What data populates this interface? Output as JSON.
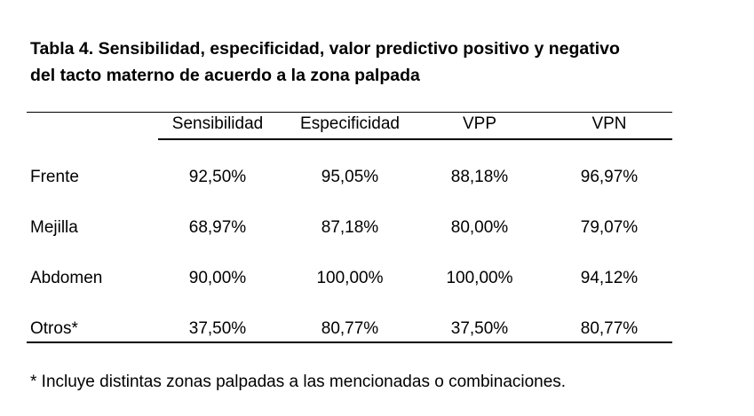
{
  "title": {
    "line1": "Tabla 4. Sensibilidad, especificidad, valor predictivo positivo y negativo",
    "line2": "del tacto materno de acuerdo a la zona palpada"
  },
  "table": {
    "headers": [
      "Sensibilidad",
      "Especificidad",
      "VPP",
      "VPN"
    ],
    "rows": [
      {
        "label": "Frente",
        "values": [
          "92,50%",
          "95,05%",
          "88,18%",
          "96,97%"
        ]
      },
      {
        "label": "Mejilla",
        "values": [
          "68,97%",
          "87,18%",
          "80,00%",
          "79,07%"
        ]
      },
      {
        "label": "Abdomen",
        "values": [
          "90,00%",
          "100,00%",
          "100,00%",
          "94,12%"
        ]
      },
      {
        "label": "Otros*",
        "values": [
          "37,50%",
          "80,77%",
          "37,50%",
          "80,77%"
        ]
      }
    ]
  },
  "footnote": "* Incluye distintas zonas palpadas a las mencionadas o combinaciones."
}
